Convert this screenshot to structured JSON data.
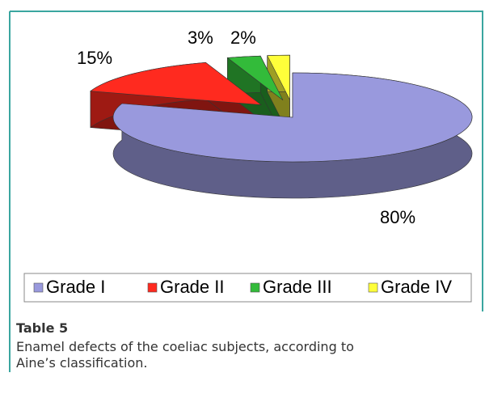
{
  "chart_data": {
    "type": "pie3d",
    "categories": [
      "Grade I",
      "Grade II",
      "Grade III",
      "Grade IV"
    ],
    "values": [
      80,
      15,
      3,
      2
    ],
    "value_labels": [
      "80%",
      "15%",
      "3%",
      "2%"
    ],
    "colors": [
      "#9999dd",
      "#ff2a1f",
      "#33bb3a",
      "#ffff3a"
    ],
    "legend": "bottom"
  },
  "caption": {
    "label": "Table 5",
    "lines": [
      "Enamel defects of the coeliac subjects, according to",
      "Aine’s classification."
    ]
  }
}
